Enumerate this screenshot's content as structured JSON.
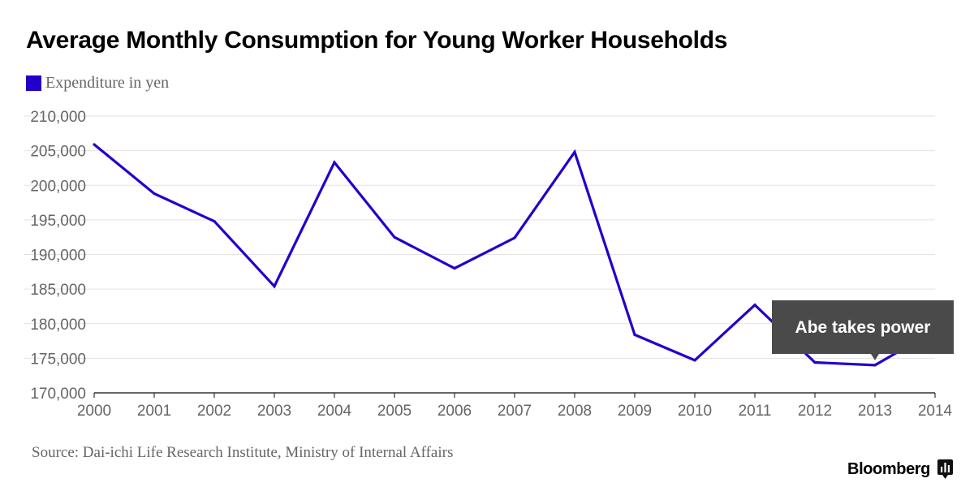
{
  "chart_data": {
    "type": "line",
    "title": "Average Monthly Consumption for Young Worker Households",
    "xlabel": "",
    "ylabel": "",
    "x": [
      "2000",
      "2001",
      "2002",
      "2003",
      "2004",
      "2005",
      "2006",
      "2007",
      "2008",
      "2009",
      "2010",
      "2011",
      "2012",
      "2013",
      "2014"
    ],
    "series": [
      {
        "name": "Expenditure in yen",
        "color": "#2200cc",
        "values": [
          205900,
          198800,
          194800,
          185400,
          203300,
          192500,
          188000,
          192400,
          204800,
          178400,
          174700,
          182700,
          174400,
          174000,
          179000
        ]
      }
    ],
    "ylim": [
      170000,
      210000
    ],
    "yticks": [
      "170,000",
      "175,000",
      "180,000",
      "185,000",
      "190,000",
      "195,000",
      "200,000",
      "205,000",
      "210,000"
    ],
    "ytick_values": [
      170000,
      175000,
      180000,
      185000,
      190000,
      195000,
      200000,
      205000,
      210000
    ],
    "grid": true,
    "legend_position": "top-left",
    "annotation": {
      "text": "Abe takes power",
      "x": "2013",
      "background": "#4a4a4a",
      "text_color": "#ffffff"
    }
  },
  "source": "Source: Dai-ichi Life Research Institute, Ministry of Internal Affairs",
  "brand": {
    "name": "Bloomberg",
    "icon": "bloomberg-chart-icon"
  },
  "colors": {
    "line": "#2200cc",
    "grid": "#e3e3e3",
    "axis": "#333333",
    "tick_text": "#666666"
  }
}
